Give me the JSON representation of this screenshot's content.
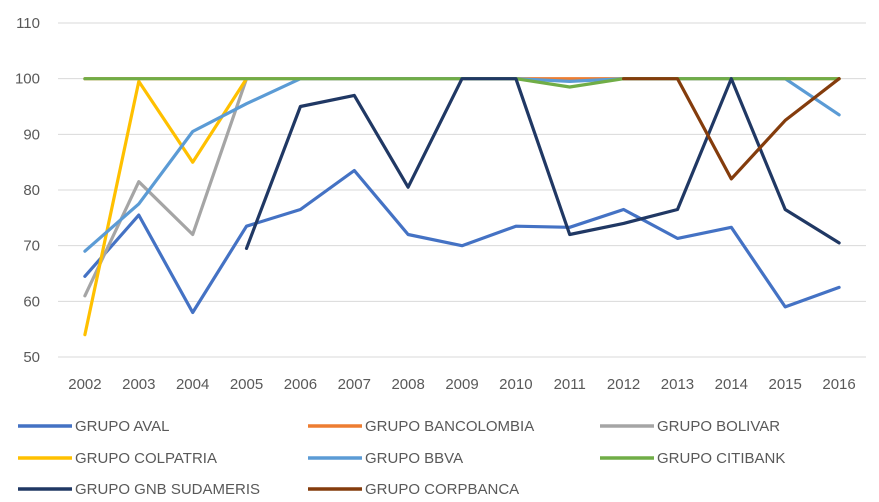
{
  "chart_data": {
    "type": "line",
    "title": "",
    "xlabel": "",
    "ylabel": "",
    "x": [
      "2002",
      "2003",
      "2004",
      "2005",
      "2006",
      "2007",
      "2008",
      "2009",
      "2010",
      "2011",
      "2012",
      "2013",
      "2014",
      "2015",
      "2016"
    ],
    "ylim": [
      50,
      110
    ],
    "yticks": [
      50,
      60,
      70,
      80,
      90,
      100,
      110
    ],
    "grid": true,
    "legend_position": "bottom",
    "series": [
      {
        "name": "GRUPO AVAL",
        "color": "#4472c4",
        "values": [
          64.5,
          75.5,
          58,
          73.5,
          76.5,
          83.5,
          72,
          70,
          73.5,
          73.3,
          76.5,
          71.3,
          73.3,
          59,
          62.5
        ]
      },
      {
        "name": "GRUPO BANCOLOMBIA",
        "color": "#ed7d31",
        "values": [
          100,
          100,
          100,
          100,
          100,
          100,
          100,
          100,
          100,
          100,
          100,
          100,
          100,
          100,
          100
        ]
      },
      {
        "name": "GRUPO BOLIVAR",
        "color": "#a5a5a5",
        "values": [
          61,
          81.5,
          72,
          100,
          null,
          null,
          null,
          null,
          null,
          null,
          null,
          null,
          null,
          null,
          null
        ]
      },
      {
        "name": "GRUPO COLPATRIA",
        "color": "#ffc000",
        "values": [
          54,
          99.5,
          85,
          100,
          null,
          null,
          null,
          null,
          null,
          null,
          null,
          null,
          null,
          null,
          null
        ]
      },
      {
        "name": "GRUPO BBVA",
        "color": "#5b9bd5",
        "values": [
          69,
          77.5,
          90.5,
          95.5,
          100,
          100,
          100,
          100,
          100,
          99.5,
          100,
          100,
          100,
          100,
          93.5
        ]
      },
      {
        "name": "GRUPO CITIBANK",
        "color": "#70ad47",
        "values": [
          100,
          100,
          100,
          100,
          100,
          100,
          100,
          100,
          100,
          98.5,
          100,
          100,
          100,
          100,
          100
        ]
      },
      {
        "name": "GRUPO GNB SUDAMERIS",
        "color": "#203864",
        "values": [
          null,
          null,
          null,
          69.5,
          95,
          97,
          80.5,
          100,
          100,
          72,
          74,
          76.5,
          100,
          76.5,
          70.5
        ]
      },
      {
        "name": "GRUPO CORPBANCA",
        "color": "#843c0c",
        "values": [
          null,
          null,
          null,
          null,
          null,
          null,
          null,
          null,
          null,
          null,
          100,
          100,
          82,
          92.5,
          100
        ]
      }
    ]
  }
}
